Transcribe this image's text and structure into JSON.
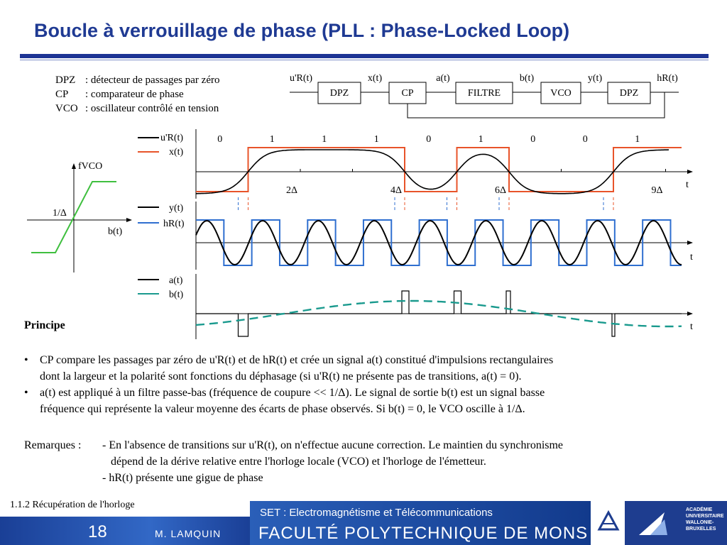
{
  "title": "Boucle à verrouillage de phase (PLL : Phase-Locked Loop)",
  "legend": [
    {
      "term": "DPZ",
      "desc": ": détecteur de passages par zéro"
    },
    {
      "term": "CP",
      "desc": ": comparateur de phase"
    },
    {
      "term": "VCO",
      "desc": ": oscillateur contrôlé en tension"
    }
  ],
  "block_diagram": {
    "blocks": [
      "DPZ",
      "CP",
      "FILTRE",
      "VCO",
      "DPZ"
    ],
    "signals": [
      "u'R(t)",
      "x(t)",
      "a(t)",
      "b(t)",
      "y(t)",
      "hR(t)"
    ]
  },
  "vco_char": {
    "y_label": "fVCO",
    "x_label": "b(t)",
    "level": "1/Δ"
  },
  "timing": {
    "bits": [
      "0",
      "1",
      "1",
      "1",
      "0",
      "1",
      "0",
      "0",
      "1"
    ],
    "tick_labels": [
      "2Δ",
      "4Δ",
      "6Δ",
      "9Δ"
    ],
    "axis_label": "t",
    "panel1_legend": [
      "u'R(t)",
      "x(t)"
    ],
    "panel2_legend": [
      "y(t)",
      "hR(t)"
    ],
    "panel3_legend": [
      "a(t)",
      "b(t)"
    ],
    "colors": {
      "black": "#000000",
      "red": "#e8542a",
      "blue": "#2f6fd0",
      "teal": "#1a9a8e"
    }
  },
  "principle": {
    "heading": "Principe",
    "bullet1_line1": "CP compare les passages par zéro de u'R(t) et de hR(t) et crée un signal a(t) constitué d'impulsions rectangulaires",
    "bullet1_line2": "dont la largeur et la polarité sont fonctions du déphasage (si u'R(t) ne présente pas de transitions, a(t) = 0).",
    "bullet2_line1": "a(t) est appliqué à un filtre passe-bas (fréquence de coupure  << 1/Δ). Le signal de sortie b(t) est un signal basse",
    "bullet2_line2": "fréquence qui représente la valeur moyenne des écarts de phase observés. Si b(t) = 0, le VCO oscille à 1/Δ."
  },
  "remarks": {
    "label": "Remarques :",
    "line1": "- En l'absence de transitions sur u'R(t), on n'effectue aucune correction. Le maintien du synchronisme",
    "line2": "dépend de la dérive relative entre l'horloge locale (VCO) et l'horloge de l'émetteur.",
    "line3": "- hR(t) présente une gigue de phase"
  },
  "footer": {
    "section": "1.1.2  Récupération de l'horloge",
    "page": "18",
    "author": "M. LAMQUIN",
    "course": "SET : Electromagnétisme et Télécommunications",
    "faculty": "FACULTÉ POLYTECHNIQUE DE MONS",
    "academie": "ACADÉMIE UNIVERSITAIRE WALLONIE-BRUXELLES"
  }
}
